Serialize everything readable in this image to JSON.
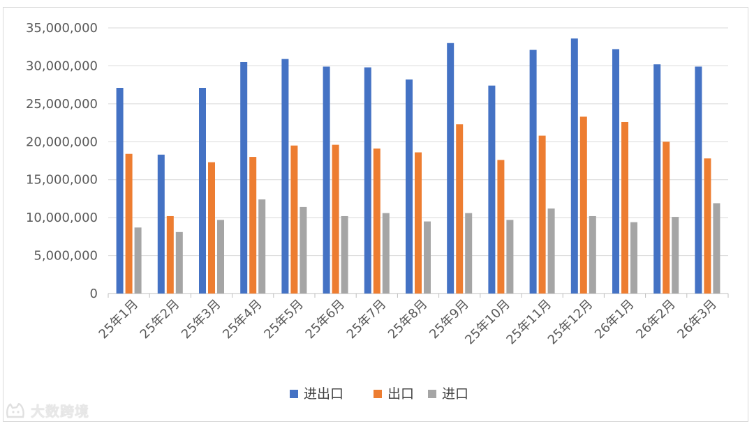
{
  "chart_data": {
    "type": "bar",
    "categories": [
      "25年1月",
      "25年2月",
      "25年3月",
      "25年4月",
      "25年5月",
      "25年6月",
      "25年7月",
      "25年8月",
      "25年9月",
      "25年10月",
      "25年11月",
      "25年12月",
      "26年1月",
      "26年2月",
      "26年3月"
    ],
    "series": [
      {
        "name": "进出口",
        "color": "#4472C4",
        "values": [
          27100000,
          18300000,
          27100000,
          30500000,
          30900000,
          29900000,
          29800000,
          28200000,
          33000000,
          27400000,
          32100000,
          33600000,
          32200000,
          30200000,
          29900000
        ]
      },
      {
        "name": "出口",
        "color": "#ED7D31",
        "values": [
          18400000,
          10200000,
          17300000,
          18000000,
          19500000,
          19600000,
          19100000,
          18600000,
          22300000,
          17600000,
          20800000,
          23300000,
          22600000,
          20000000,
          17800000
        ]
      },
      {
        "name": "进口",
        "color": "#A5A5A5",
        "values": [
          8700000,
          8100000,
          9700000,
          12400000,
          11400000,
          10200000,
          10600000,
          9500000,
          10600000,
          9700000,
          11200000,
          10200000,
          9400000,
          10100000,
          11900000
        ]
      }
    ],
    "yticks": [
      "0",
      "5,000,000",
      "10,000,000",
      "15,000,000",
      "20,000,000",
      "25,000,000",
      "30,000,000",
      "35,000,000"
    ],
    "ylim": [
      0,
      35000000
    ],
    "grid": true,
    "legend_position": "bottom"
  },
  "watermark": {
    "text": "大数跨境",
    "icon": "cat-face-icon"
  }
}
